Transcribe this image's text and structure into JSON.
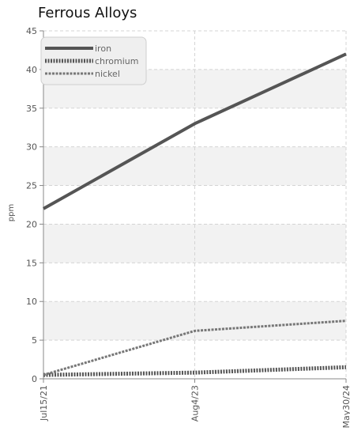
{
  "chart_data": {
    "type": "line",
    "title": "Ferrous Alloys",
    "xlabel": "",
    "ylabel": "ppm",
    "x": [
      "Jul15/21",
      "Aug4/23",
      "May30/24"
    ],
    "ylim": [
      0,
      45
    ],
    "y_ticks": [
      0,
      5,
      10,
      15,
      20,
      25,
      30,
      35,
      40,
      45
    ],
    "grid": true,
    "legend": "top-left",
    "series": [
      {
        "name": "iron",
        "values": [
          22,
          33,
          42
        ],
        "color": "#555555",
        "style": "solid"
      },
      {
        "name": "chromium",
        "values": [
          0.5,
          0.8,
          1.5
        ],
        "color": "#555555",
        "style": "dotted"
      },
      {
        "name": "nickel",
        "values": [
          0.5,
          6.2,
          7.5
        ],
        "color": "#777777",
        "style": "dashed"
      }
    ]
  }
}
